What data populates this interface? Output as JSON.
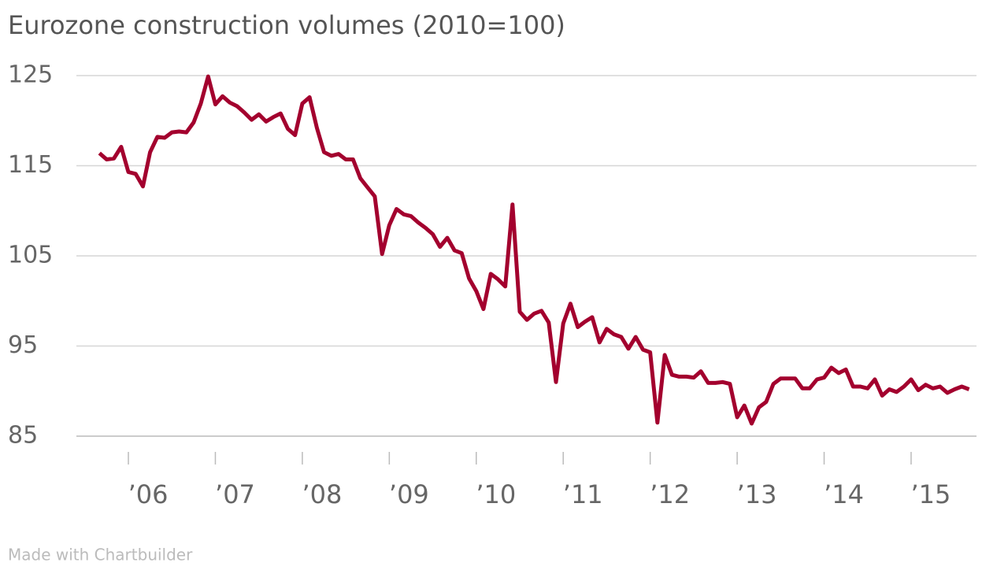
{
  "chart_data": {
    "type": "line",
    "title": "Eurozone construction volumes (2010=100)",
    "credit": "Made with Chartbuilder",
    "x": [
      2005.667,
      2005.75,
      2005.833,
      2005.917,
      2006,
      2006.083,
      2006.167,
      2006.25,
      2006.333,
      2006.417,
      2006.5,
      2006.583,
      2006.667,
      2006.75,
      2006.833,
      2006.917,
      2007,
      2007.083,
      2007.167,
      2007.25,
      2007.333,
      2007.417,
      2007.5,
      2007.583,
      2007.667,
      2007.75,
      2007.833,
      2007.917,
      2008,
      2008.083,
      2008.167,
      2008.25,
      2008.333,
      2008.417,
      2008.5,
      2008.583,
      2008.667,
      2008.75,
      2008.833,
      2008.917,
      2009,
      2009.083,
      2009.167,
      2009.25,
      2009.333,
      2009.417,
      2009.5,
      2009.583,
      2009.667,
      2009.75,
      2009.833,
      2009.917,
      2010,
      2010.083,
      2010.167,
      2010.25,
      2010.333,
      2010.417,
      2010.5,
      2010.583,
      2010.667,
      2010.75,
      2010.833,
      2010.917,
      2011,
      2011.083,
      2011.167,
      2011.25,
      2011.333,
      2011.417,
      2011.5,
      2011.583,
      2011.667,
      2011.75,
      2011.833,
      2011.917,
      2012,
      2012.083,
      2012.167,
      2012.25,
      2012.333,
      2012.417,
      2012.5,
      2012.583,
      2012.667,
      2012.75,
      2012.833,
      2012.917,
      2013,
      2013.083,
      2013.167,
      2013.25,
      2013.333,
      2013.417,
      2013.5,
      2013.583,
      2013.667,
      2013.75,
      2013.833,
      2013.917,
      2014,
      2014.083,
      2014.167,
      2014.25,
      2014.333,
      2014.417,
      2014.5,
      2014.583,
      2014.667,
      2014.75,
      2014.833,
      2014.917,
      2015,
      2015.083,
      2015.167,
      2015.25,
      2015.333,
      2015.417,
      2015.5,
      2015.583,
      2015.667
    ],
    "series": [
      {
        "name": "Construction volume",
        "color": "#a3002e",
        "values": [
          116.4,
          115.7,
          115.8,
          117.1,
          114.3,
          114.1,
          112.7,
          116.5,
          118.2,
          118.1,
          118.7,
          118.8,
          118.7,
          119.8,
          121.9,
          124.9,
          121.8,
          122.7,
          122.0,
          121.6,
          120.9,
          120.1,
          120.7,
          119.9,
          120.4,
          120.8,
          119.1,
          118.4,
          121.9,
          122.6,
          119.2,
          116.5,
          116.1,
          116.3,
          115.7,
          115.7,
          113.6,
          112.6,
          111.6,
          105.2,
          108.4,
          110.2,
          109.6,
          109.4,
          108.7,
          108.1,
          107.4,
          106.0,
          107.0,
          105.6,
          105.3,
          102.5,
          101.1,
          99.1,
          103.0,
          102.4,
          101.6,
          110.7,
          98.8,
          97.9,
          98.6,
          98.9,
          97.6,
          91.0,
          97.5,
          99.7,
          97.1,
          97.7,
          98.2,
          95.4,
          96.9,
          96.3,
          96.0,
          94.7,
          96.0,
          94.6,
          94.3,
          86.5,
          94.0,
          91.8,
          91.6,
          91.6,
          91.5,
          92.2,
          90.9,
          90.9,
          91.0,
          90.8,
          87.1,
          88.4,
          86.4,
          88.2,
          88.8,
          90.8,
          91.4,
          91.4,
          91.4,
          90.3,
          90.3,
          91.3,
          91.5,
          92.6,
          92.0,
          92.4,
          90.5,
          90.5,
          90.3,
          91.3,
          89.5,
          90.2,
          89.9,
          90.5,
          91.3,
          90.1,
          90.7,
          90.3,
          90.5,
          89.8,
          90.2,
          90.5,
          90.2
        ]
      }
    ],
    "xlim": [
      2005.402,
      2015.752
    ],
    "xticks": [
      {
        "value": 2006,
        "label": "’06"
      },
      {
        "value": 2007,
        "label": "’07"
      },
      {
        "value": 2008,
        "label": "’08"
      },
      {
        "value": 2009,
        "label": "’09"
      },
      {
        "value": 2010,
        "label": "’10"
      },
      {
        "value": 2011,
        "label": "’11"
      },
      {
        "value": 2012,
        "label": "’12"
      },
      {
        "value": 2013,
        "label": "’13"
      },
      {
        "value": 2014,
        "label": "’14"
      },
      {
        "value": 2015,
        "label": "’15"
      }
    ],
    "ylim": [
      85,
      125
    ],
    "yticks": [
      85,
      95,
      105,
      115,
      125
    ],
    "grid": true
  }
}
